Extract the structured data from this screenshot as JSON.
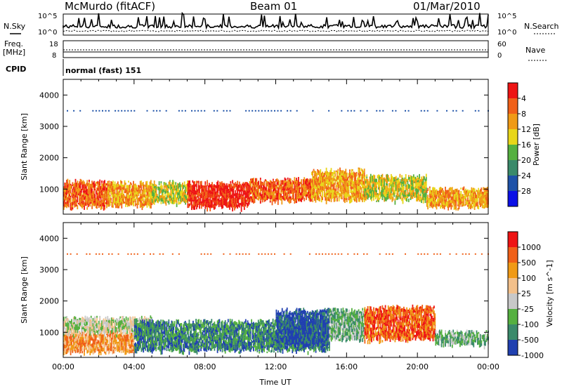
{
  "header": {
    "station": "McMurdo (fitACF)",
    "beam": "Beam 01",
    "date": "01/Mar/2010"
  },
  "noise_panel": {
    "left_label": "N.Sky",
    "right_label": "N.Search",
    "ticks_left": [
      "10^5",
      "10^0"
    ],
    "ticks_right": [
      "10^5",
      "10^0"
    ]
  },
  "freq_panel": {
    "left_label_1": "Freq.",
    "left_label_2": "[MHz]",
    "right_label": "Nave",
    "ticks_left": [
      "18",
      "8"
    ],
    "ticks_right": [
      "60",
      "0"
    ]
  },
  "cpid": {
    "label": "CPID",
    "value": "normal (fast) 151"
  },
  "colors": {
    "power_scale": [
      "#0b10e6",
      "#1e52a8",
      "#3a8a6a",
      "#55b040",
      "#e8d61a",
      "#f09a16",
      "#f06018",
      "#ee1414"
    ],
    "velocity_scale": [
      "#ee1414",
      "#f06018",
      "#f09a16",
      "#f3c08a",
      "#c8c8c8",
      "#55b040",
      "#3a8a6a",
      "#2040b0"
    ]
  },
  "chart_data": [
    {
      "type": "heatmap",
      "name": "power",
      "ylabel": "Slant Range [km]",
      "ylim": [
        200,
        4500
      ],
      "yticks": [
        "1000",
        "2000",
        "3000",
        "4000"
      ],
      "xlim": [
        "00:00",
        "24:00"
      ],
      "colorbar": {
        "label": "Power [dB]",
        "ticks": [
          "4",
          "8",
          "12",
          "16",
          "20",
          "24",
          "28"
        ]
      },
      "bands": [
        {
          "x": [
            0.0,
            2.5
          ],
          "range": [
            450,
            1250
          ],
          "level": 6
        },
        {
          "x": [
            2.5,
            5.0
          ],
          "range": [
            500,
            1200
          ],
          "level": 5
        },
        {
          "x": [
            5.0,
            7.0
          ],
          "range": [
            600,
            1200
          ],
          "level": 4
        },
        {
          "x": [
            7.0,
            10.5
          ],
          "range": [
            450,
            1200
          ],
          "level": 7
        },
        {
          "x": [
            10.5,
            14.0
          ],
          "range": [
            650,
            1300
          ],
          "level": 6
        },
        {
          "x": [
            14.0,
            17.0
          ],
          "range": [
            700,
            1600
          ],
          "level": 5
        },
        {
          "x": [
            17.0,
            20.5
          ],
          "range": [
            700,
            1400
          ],
          "level": 4
        },
        {
          "x": [
            20.5,
            24.0
          ],
          "range": [
            450,
            1000
          ],
          "level": 5
        }
      ]
    },
    {
      "type": "heatmap",
      "name": "velocity",
      "ylabel": "Slant Range [km]",
      "ylim": [
        200,
        4500
      ],
      "yticks": [
        "1000",
        "2000",
        "3000",
        "4000"
      ],
      "xlabel": "Time UT",
      "xlim": [
        "00:00",
        "24:00"
      ],
      "xticks": [
        "00:00",
        "04:00",
        "08:00",
        "12:00",
        "16:00",
        "20:00",
        "00:00"
      ],
      "colorbar": {
        "label": "Velocity [m s^-1]",
        "ticks": [
          "1000",
          "500",
          "100",
          "25",
          "-25",
          "-100",
          "-500",
          "-1000"
        ]
      },
      "bands": [
        {
          "x": [
            0.0,
            4.0
          ],
          "range": [
            400,
            1000
          ],
          "level": 2
        },
        {
          "x": [
            0.0,
            5.0
          ],
          "range": [
            1000,
            1450
          ],
          "level": 4
        },
        {
          "x": [
            4.0,
            15.0
          ],
          "range": [
            450,
            1350
          ],
          "level": 6
        },
        {
          "x": [
            12.0,
            15.0
          ],
          "range": [
            600,
            1700
          ],
          "level": 7
        },
        {
          "x": [
            15.0,
            17.0
          ],
          "range": [
            800,
            1700
          ],
          "level": 5
        },
        {
          "x": [
            17.0,
            21.0
          ],
          "range": [
            800,
            1800
          ],
          "level": 1
        },
        {
          "x": [
            21.0,
            24.0
          ],
          "range": [
            650,
            1000
          ],
          "level": 5
        }
      ]
    }
  ]
}
